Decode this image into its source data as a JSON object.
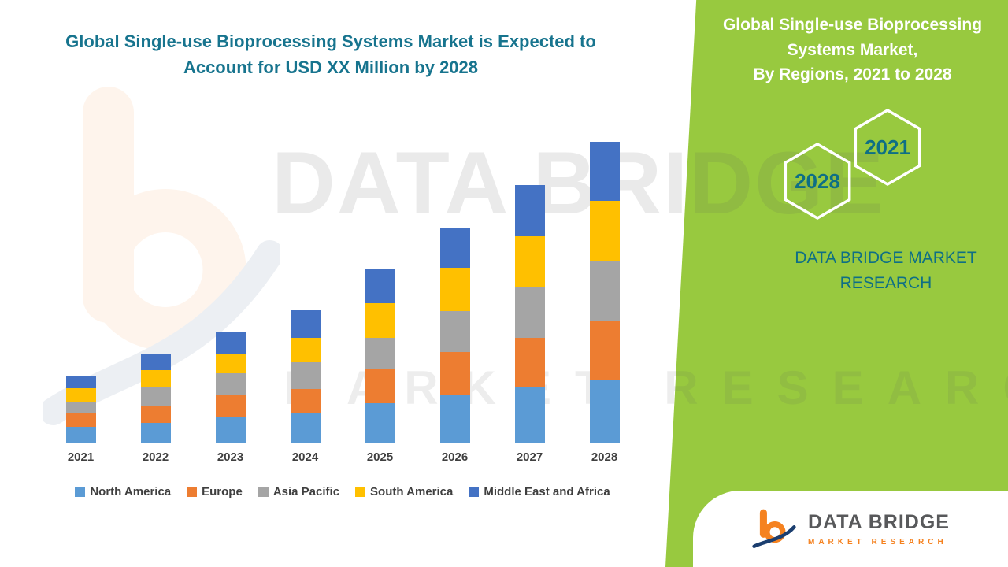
{
  "side_panel": {
    "title": "Global Single-use Bioprocessing Systems Market,",
    "subtitle": "By Regions, 2021 to 2028",
    "hex_year_2021": "2021",
    "hex_year_2028": "2028",
    "brand_line1": "DATA BRIDGE MARKET",
    "brand_line2": "RESEARCH",
    "panel_green": "#98C93F",
    "panel_teal": "#0E6F85"
  },
  "watermark": {
    "line1": "DATA BRIDGE",
    "line2": "MARKET RESEARCH"
  },
  "logo": {
    "name": "DATA BRIDGE",
    "tagline": "MARKET  RESEARCH"
  },
  "chart_data": {
    "type": "bar",
    "stacked": true,
    "title": "Global Single-use Bioprocessing Systems Market is Expected to Account for USD XX Million by 2028",
    "xlabel": "",
    "ylabel": "",
    "value_units": "USD Million (values shown as XX, not labeled)",
    "categories": [
      "2021",
      "2022",
      "2023",
      "2024",
      "2025",
      "2026",
      "2027",
      "2028"
    ],
    "series": [
      {
        "name": "North America",
        "color": "#5B9BD5",
        "values": [
          20,
          25,
          32,
          38,
          50,
          60,
          70,
          80
        ]
      },
      {
        "name": "Europe",
        "color": "#ED7D31",
        "values": [
          17,
          22,
          28,
          30,
          43,
          55,
          63,
          75
        ]
      },
      {
        "name": "Asia Pacific",
        "color": "#A5A5A5",
        "values": [
          15,
          23,
          28,
          34,
          40,
          52,
          64,
          75
        ]
      },
      {
        "name": "South America",
        "color": "#FFC000",
        "values": [
          17,
          22,
          24,
          31,
          44,
          55,
          65,
          77
        ]
      },
      {
        "name": "Middle East and Africa",
        "color": "#4472C4",
        "values": [
          16,
          21,
          28,
          35,
          43,
          50,
          65,
          75
        ]
      }
    ],
    "ylim": [
      0,
      400
    ],
    "grid": false,
    "y_axis_labels_visible": false,
    "legend_position": "bottom"
  }
}
